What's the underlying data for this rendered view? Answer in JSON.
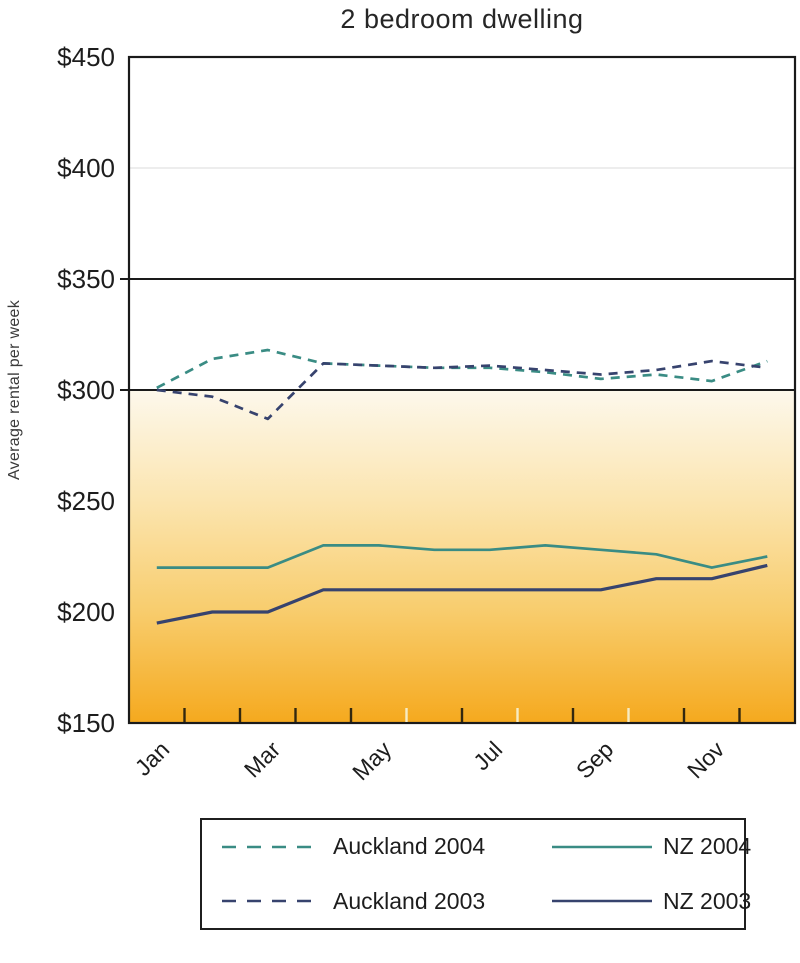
{
  "title": "2 bedroom dwelling",
  "y_axis_title": "Average rental per week",
  "colors": {
    "teal": "#3a8c84",
    "navy": "#37436e",
    "grid": "#1a1a1a",
    "faint_grid": "#ededed",
    "tick_dark": "#33280f",
    "tick_light": "#f6ecc4",
    "gradient_top": "#fdf8ec",
    "gradient_mid1": "#fbe5b0",
    "gradient_mid2": "#f8cd6e",
    "gradient_bottom": "#f5a91e",
    "text": "#1d1d1d"
  },
  "chart_data": {
    "type": "line",
    "x": [
      "Jan",
      "Feb",
      "Mar",
      "Apr",
      "May",
      "Jun",
      "Jul",
      "Aug",
      "Sep",
      "Oct",
      "Nov",
      "Dec"
    ],
    "x_labels_shown": [
      {
        "label": "Jan",
        "month_index": 0
      },
      {
        "label": "Mar",
        "month_index": 2
      },
      {
        "label": "May",
        "month_index": 4
      },
      {
        "label": "Jul",
        "month_index": 6
      },
      {
        "label": "Sep",
        "month_index": 8
      },
      {
        "label": "Nov",
        "month_index": 10
      }
    ],
    "title": "2 bedroom dwelling",
    "xlabel": "",
    "ylabel": "Average rental per week",
    "ylim": [
      150,
      450
    ],
    "y_ticks": [
      {
        "label": "$450",
        "value": 450
      },
      {
        "label": "$400",
        "value": 400
      },
      {
        "label": "$350",
        "value": 350
      },
      {
        "label": "$300",
        "value": 300
      },
      {
        "label": "$250",
        "value": 250
      },
      {
        "label": "$200",
        "value": 200
      },
      {
        "label": "$150",
        "value": 150
      }
    ],
    "gridlines_black": [
      350,
      300
    ],
    "gridlines_faint": [
      400
    ],
    "shaded_region_below": 300,
    "grid": "partial horizontal lines, gold gradient fill below $300",
    "legend_position": "bottom",
    "series": [
      {
        "name": "Auckland 2004",
        "style": "dashed",
        "color_key": "teal",
        "values": [
          301,
          314,
          318,
          312,
          311,
          310,
          310,
          308,
          305,
          307,
          304,
          313
        ]
      },
      {
        "name": "Auckland 2003",
        "style": "dashed",
        "color_key": "navy",
        "values": [
          300,
          297,
          287,
          312,
          311,
          310,
          311,
          309,
          307,
          309,
          313,
          310
        ]
      },
      {
        "name": "NZ 2004",
        "style": "solid",
        "color_key": "teal",
        "values": [
          220,
          220,
          220,
          230,
          230,
          228,
          228,
          230,
          228,
          226,
          220,
          225
        ]
      },
      {
        "name": "NZ 2003",
        "style": "solid",
        "color_key": "navy",
        "values": [
          195,
          200,
          200,
          210,
          210,
          210,
          210,
          210,
          210,
          215,
          215,
          221
        ]
      }
    ]
  },
  "legend": {
    "items": [
      {
        "label": "Auckland 2004",
        "style": "dashed",
        "color_key": "teal"
      },
      {
        "label": "NZ 2004",
        "style": "solid",
        "color_key": "teal"
      },
      {
        "label": "Auckland 2003",
        "style": "dashed",
        "color_key": "navy"
      },
      {
        "label": "NZ 2003",
        "style": "solid",
        "color_key": "navy"
      }
    ]
  }
}
